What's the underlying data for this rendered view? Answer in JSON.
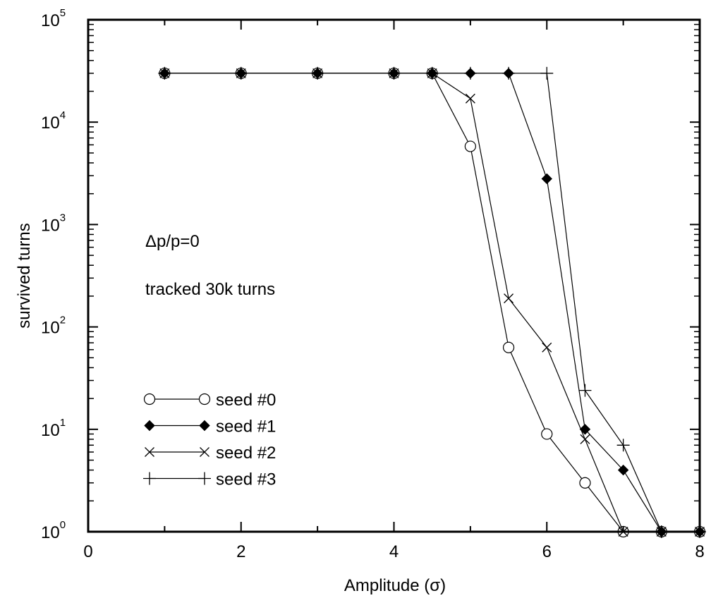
{
  "chart_data": {
    "type": "line",
    "xlabel": "Amplitude (σ)",
    "ylabel": "survived turns",
    "xlim": [
      0,
      8
    ],
    "ylim": [
      1,
      100000
    ],
    "yscale": "log",
    "x_ticks": [
      0,
      2,
      4,
      6,
      8
    ],
    "y_ticks": [
      {
        "value": 1,
        "base": "10",
        "exp": "0"
      },
      {
        "value": 10,
        "base": "10",
        "exp": "1"
      },
      {
        "value": 100,
        "base": "10",
        "exp": "2"
      },
      {
        "value": 1000,
        "base": "10",
        "exp": "3"
      },
      {
        "value": 10000,
        "base": "10",
        "exp": "4"
      },
      {
        "value": 100000,
        "base": "10",
        "exp": "5"
      }
    ],
    "annotations": [
      "Δp/p=0",
      "tracked 30k turns"
    ],
    "legend_position": "bottom-left",
    "grid": false,
    "series": [
      {
        "name": "seed #0",
        "marker": "open-circle",
        "x": [
          1,
          2,
          3,
          4,
          4.5,
          5,
          5.5,
          6,
          6.5,
          7,
          7.5,
          8
        ],
        "y": [
          30000,
          30000,
          30000,
          30000,
          30000,
          5800,
          63,
          9,
          3,
          1,
          1,
          1
        ]
      },
      {
        "name": "seed #1",
        "marker": "filled-diamond",
        "x": [
          1,
          2,
          3,
          4,
          4.5,
          5,
          5.5,
          6,
          6.5,
          7,
          7.5,
          8
        ],
        "y": [
          30000,
          30000,
          30000,
          30000,
          30000,
          30000,
          30000,
          2800,
          10,
          4,
          1,
          1
        ]
      },
      {
        "name": "seed #2",
        "marker": "x-cross",
        "x": [
          1,
          2,
          3,
          4,
          4.5,
          5,
          5.5,
          6,
          6.5,
          7,
          7.5,
          8
        ],
        "y": [
          30000,
          30000,
          30000,
          30000,
          30000,
          17000,
          190,
          63,
          8,
          1,
          1,
          1
        ]
      },
      {
        "name": "seed #3",
        "marker": "plus",
        "x": [
          1,
          2,
          3,
          4,
          4.5,
          5,
          5.5,
          6,
          6.5,
          7,
          7.5,
          8
        ],
        "y": [
          30000,
          30000,
          30000,
          30000,
          30000,
          30000,
          30000,
          30000,
          24,
          7,
          1,
          1
        ]
      }
    ]
  }
}
